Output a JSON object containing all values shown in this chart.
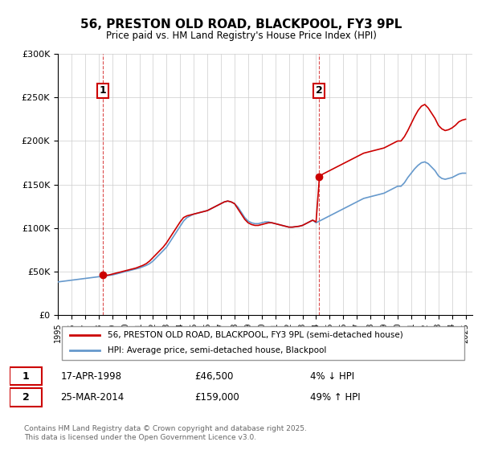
{
  "title": "56, PRESTON OLD ROAD, BLACKPOOL, FY3 9PL",
  "subtitle": "Price paid vs. HM Land Registry's House Price Index (HPI)",
  "legend_line1": "56, PRESTON OLD ROAD, BLACKPOOL, FY3 9PL (semi-detached house)",
  "legend_line2": "HPI: Average price, semi-detached house, Blackpool",
  "transaction1_label": "1",
  "transaction1_date": "17-APR-1998",
  "transaction1_price": "£46,500",
  "transaction1_hpi": "4% ↓ HPI",
  "transaction1_year": 1998.29,
  "transaction1_value": 46500,
  "transaction2_label": "2",
  "transaction2_date": "25-MAR-2014",
  "transaction2_price": "£159,000",
  "transaction2_hpi": "49% ↑ HPI",
  "transaction2_year": 2014.23,
  "transaction2_value": 159000,
  "xmin": 1995,
  "xmax": 2025.5,
  "ymin": 0,
  "ymax": 300000,
  "yticks": [
    0,
    50000,
    100000,
    150000,
    200000,
    250000,
    300000
  ],
  "ytick_labels": [
    "£0",
    "£50K",
    "£100K",
    "£150K",
    "£200K",
    "£250K",
    "£300K"
  ],
  "xticks": [
    1995,
    1996,
    1997,
    1998,
    1999,
    2000,
    2001,
    2002,
    2003,
    2004,
    2005,
    2006,
    2007,
    2008,
    2009,
    2010,
    2011,
    2012,
    2013,
    2014,
    2015,
    2016,
    2017,
    2018,
    2019,
    2020,
    2021,
    2022,
    2023,
    2024,
    2025
  ],
  "line_color_price": "#cc0000",
  "line_color_hpi": "#6699cc",
  "vline_color": "#cc0000",
  "marker_color": "#cc0000",
  "background_color": "#ffffff",
  "grid_color": "#cccccc",
  "footer": "Contains HM Land Registry data © Crown copyright and database right 2025.\nThis data is licensed under the Open Government Licence v3.0.",
  "hpi_data": {
    "years": [
      1995.0,
      1995.25,
      1995.5,
      1995.75,
      1996.0,
      1996.25,
      1996.5,
      1996.75,
      1997.0,
      1997.25,
      1997.5,
      1997.75,
      1998.0,
      1998.25,
      1998.5,
      1998.75,
      1999.0,
      1999.25,
      1999.5,
      1999.75,
      2000.0,
      2000.25,
      2000.5,
      2000.75,
      2001.0,
      2001.25,
      2001.5,
      2001.75,
      2002.0,
      2002.25,
      2002.5,
      2002.75,
      2003.0,
      2003.25,
      2003.5,
      2003.75,
      2004.0,
      2004.25,
      2004.5,
      2004.75,
      2005.0,
      2005.25,
      2005.5,
      2005.75,
      2006.0,
      2006.25,
      2006.5,
      2006.75,
      2007.0,
      2007.25,
      2007.5,
      2007.75,
      2008.0,
      2008.25,
      2008.5,
      2008.75,
      2009.0,
      2009.25,
      2009.5,
      2009.75,
      2010.0,
      2010.25,
      2010.5,
      2010.75,
      2011.0,
      2011.25,
      2011.5,
      2011.75,
      2012.0,
      2012.25,
      2012.5,
      2012.75,
      2013.0,
      2013.25,
      2013.5,
      2013.75,
      2014.0,
      2014.25,
      2014.5,
      2014.75,
      2015.0,
      2015.25,
      2015.5,
      2015.75,
      2016.0,
      2016.25,
      2016.5,
      2016.75,
      2017.0,
      2017.25,
      2017.5,
      2017.75,
      2018.0,
      2018.25,
      2018.5,
      2018.75,
      2019.0,
      2019.25,
      2019.5,
      2019.75,
      2020.0,
      2020.25,
      2020.5,
      2020.75,
      2021.0,
      2021.25,
      2021.5,
      2021.75,
      2022.0,
      2022.25,
      2022.5,
      2022.75,
      2023.0,
      2023.25,
      2023.5,
      2023.75,
      2024.0,
      2024.25,
      2024.5,
      2024.75,
      2025.0
    ],
    "values": [
      38000,
      38500,
      39000,
      39500,
      40000,
      40500,
      41000,
      41500,
      42000,
      42500,
      43000,
      43500,
      44000,
      44500,
      45000,
      45500,
      46000,
      47000,
      48000,
      49000,
      50000,
      51000,
      52000,
      53000,
      54000,
      55500,
      57000,
      59000,
      62000,
      66000,
      70000,
      74000,
      78000,
      84000,
      90000,
      96000,
      102000,
      108000,
      112000,
      114000,
      116000,
      117000,
      118000,
      119000,
      120000,
      122000,
      124000,
      126000,
      128000,
      130000,
      131000,
      130000,
      128000,
      124000,
      118000,
      112000,
      108000,
      106000,
      105000,
      105000,
      106000,
      107000,
      107000,
      106000,
      105000,
      104000,
      103000,
      102000,
      101000,
      101000,
      101500,
      102000,
      103000,
      105000,
      107000,
      109000,
      106000,
      108000,
      110000,
      112000,
      114000,
      116000,
      118000,
      120000,
      122000,
      124000,
      126000,
      128000,
      130000,
      132000,
      134000,
      135000,
      136000,
      137000,
      138000,
      139000,
      140000,
      142000,
      144000,
      146000,
      148000,
      148000,
      152000,
      158000,
      163000,
      168000,
      172000,
      175000,
      176000,
      174000,
      170000,
      166000,
      160000,
      157000,
      156000,
      157000,
      158000,
      160000,
      162000,
      163000,
      163000
    ]
  },
  "price_data": {
    "years": [
      1995.0,
      1995.25,
      1995.5,
      1995.75,
      1996.0,
      1996.25,
      1996.5,
      1996.75,
      1997.0,
      1997.25,
      1997.5,
      1997.75,
      1998.0,
      1998.25,
      1998.5,
      1998.75,
      1999.0,
      1999.25,
      1999.5,
      1999.75,
      2000.0,
      2000.25,
      2000.5,
      2000.75,
      2001.0,
      2001.25,
      2001.5,
      2001.75,
      2002.0,
      2002.25,
      2002.5,
      2002.75,
      2003.0,
      2003.25,
      2003.5,
      2003.75,
      2004.0,
      2004.25,
      2004.5,
      2004.75,
      2005.0,
      2005.25,
      2005.5,
      2005.75,
      2006.0,
      2006.25,
      2006.5,
      2006.75,
      2007.0,
      2007.25,
      2007.5,
      2007.75,
      2008.0,
      2008.25,
      2008.5,
      2008.75,
      2009.0,
      2009.25,
      2009.5,
      2009.75,
      2010.0,
      2010.25,
      2010.5,
      2010.75,
      2011.0,
      2011.25,
      2011.5,
      2011.75,
      2012.0,
      2012.25,
      2012.5,
      2012.75,
      2013.0,
      2013.25,
      2013.5,
      2013.75,
      2014.0,
      2014.25,
      2014.5,
      2014.75,
      2015.0,
      2015.25,
      2015.5,
      2015.75,
      2016.0,
      2016.25,
      2016.5,
      2016.75,
      2017.0,
      2017.25,
      2017.5,
      2017.75,
      2018.0,
      2018.25,
      2018.5,
      2018.75,
      2019.0,
      2019.25,
      2019.5,
      2019.75,
      2020.0,
      2020.25,
      2020.5,
      2020.75,
      2021.0,
      2021.25,
      2021.5,
      2021.75,
      2022.0,
      2022.25,
      2022.5,
      2022.75,
      2023.0,
      2023.25,
      2023.5,
      2023.75,
      2024.0,
      2024.25,
      2024.5,
      2024.75,
      2025.0
    ],
    "values": [
      38500,
      39000,
      39500,
      40000,
      40500,
      41000,
      41500,
      42000,
      42500,
      43000,
      43500,
      44000,
      44500,
      45000,
      45500,
      46000,
      47000,
      48000,
      49000,
      50000,
      51000,
      52000,
      53000,
      54000,
      55500,
      57000,
      59000,
      62000,
      66000,
      70000,
      74000,
      78000,
      83000,
      89000,
      95000,
      101000,
      107000,
      112000,
      114000,
      115000,
      116000,
      117000,
      118000,
      119000,
      120000,
      122000,
      124000,
      126000,
      128000,
      130000,
      131000,
      130000,
      128000,
      122000,
      116000,
      110000,
      106000,
      104000,
      103000,
      103000,
      104000,
      105000,
      106000,
      106000,
      105000,
      104000,
      103000,
      102000,
      101000,
      101000,
      101500,
      102000,
      103000,
      105000,
      107000,
      109000,
      107000,
      159000,
      162000,
      164000,
      166000,
      168000,
      170000,
      172000,
      174000,
      176000,
      178000,
      180000,
      182000,
      184000,
      186000,
      187000,
      188000,
      189000,
      190000,
      191000,
      192000,
      194000,
      196000,
      198000,
      200000,
      200000,
      205000,
      212000,
      220000,
      228000,
      235000,
      240000,
      242000,
      238000,
      232000,
      226000,
      218000,
      214000,
      212000,
      213000,
      215000,
      218000,
      222000,
      224000,
      225000
    ]
  }
}
